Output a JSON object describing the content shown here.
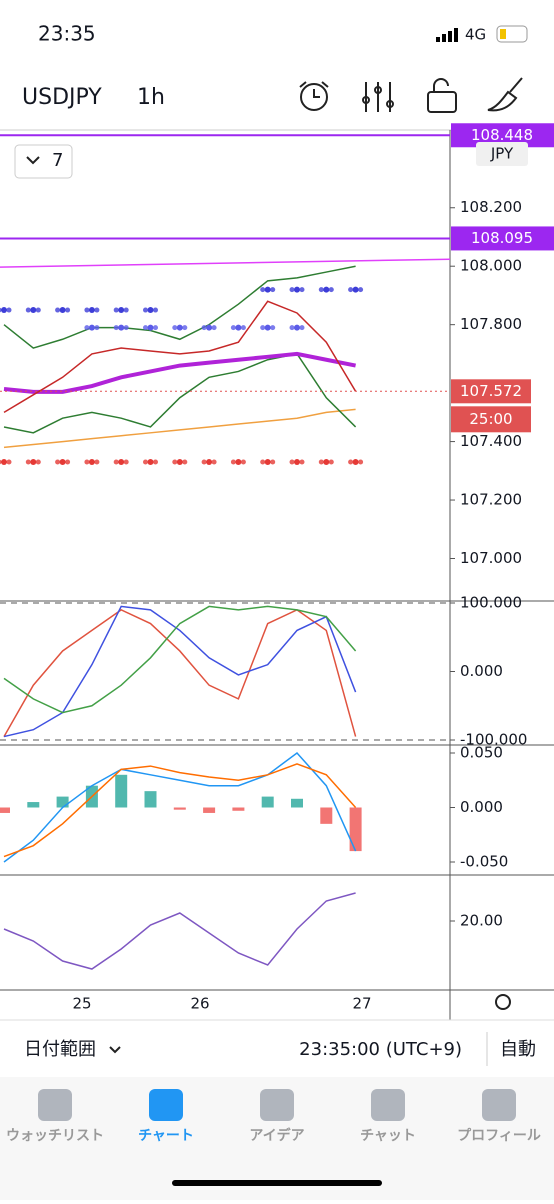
{
  "status_bar": {
    "time": "23:35",
    "network": "4G"
  },
  "header": {
    "symbol": "USDJPY",
    "interval": "1h"
  },
  "indicator_toggle": "7",
  "currency": "JPY",
  "x_axis": {
    "labels": [
      "25",
      "26",
      "27"
    ]
  },
  "chart_data": [
    {
      "type": "line",
      "ylim": [
        106.858,
        108.466
      ],
      "yticks": [
        {
          "value": 108.2,
          "label": "108.200"
        },
        {
          "value": 108,
          "label": "108.000"
        },
        {
          "value": 107.8,
          "label": "107.800"
        },
        {
          "value": 107.4,
          "label": "107.400"
        },
        {
          "value": 107.2,
          "label": "107.200"
        },
        {
          "value": 107,
          "label": "107.000"
        }
      ],
      "price_lines": [
        {
          "value": 108.448,
          "label": "108.448",
          "color": "#9c27f0"
        },
        {
          "value": 108.095,
          "label": "108.095",
          "color": "#9c27f0"
        }
      ],
      "trendline": {
        "values": [
          107.997,
          108.024
        ],
        "color": "#e040fb"
      },
      "last_price": {
        "value": 107.572,
        "label": "107.572",
        "countdown": "25:00",
        "color": "#e05252"
      },
      "series": [
        {
          "kind": "line",
          "color": "#f0a040",
          "values": [
            107.38,
            107.39,
            107.4,
            107.41,
            107.42,
            107.43,
            107.44,
            107.45,
            107.46,
            107.47,
            107.48,
            107.5,
            107.51
          ]
        },
        {
          "kind": "line",
          "color": "#2e7d32",
          "values": [
            107.8,
            107.72,
            107.75,
            107.79,
            107.79,
            107.78,
            107.75,
            107.8,
            107.87,
            107.95,
            107.96,
            107.98,
            108.0
          ]
        },
        {
          "kind": "line",
          "color": "#2e7d32",
          "values": [
            107.45,
            107.43,
            107.48,
            107.5,
            107.48,
            107.45,
            107.55,
            107.62,
            107.64,
            107.68,
            107.7,
            107.55,
            107.45
          ]
        },
        {
          "kind": "line",
          "color": "#b023d8",
          "values": [
            107.58,
            107.57,
            107.57,
            107.59,
            107.62,
            107.64,
            107.66,
            107.67,
            107.68,
            107.69,
            107.7,
            107.68,
            107.66
          ]
        },
        {
          "kind": "line",
          "color": "#c62828",
          "values": [
            107.5,
            107.56,
            107.62,
            107.7,
            107.72,
            107.71,
            107.7,
            107.71,
            107.74,
            107.88,
            107.84,
            107.74,
            107.572
          ]
        },
        {
          "kind": "dots",
          "color": "#3d3dd8",
          "values": [
            107.85,
            107.85,
            107.85,
            107.85,
            107.85,
            107.85,
            null,
            null,
            null,
            null,
            null,
            null,
            null
          ]
        },
        {
          "kind": "dots",
          "color": "#5b5be8",
          "values": [
            null,
            null,
            null,
            107.79,
            107.79,
            107.79,
            107.79,
            107.79,
            107.79,
            107.79,
            107.79,
            null,
            null
          ]
        },
        {
          "kind": "dots",
          "color": "#3d3dd8",
          "values": [
            null,
            null,
            null,
            null,
            null,
            null,
            null,
            null,
            null,
            107.92,
            107.92,
            107.92,
            107.92
          ]
        },
        {
          "kind": "dots",
          "color": "#e53935",
          "values": [
            107.33,
            107.33,
            107.33,
            107.33,
            107.33,
            107.33,
            107.33,
            107.33,
            107.33,
            107.33,
            107.33,
            107.33,
            107.33
          ]
        }
      ]
    },
    {
      "type": "line",
      "ylim": [
        -100,
        100
      ],
      "yticks": [
        {
          "value": 100,
          "label": "100.000"
        },
        {
          "value": 0,
          "label": "0.000"
        },
        {
          "value": -100,
          "label": "-100.000"
        }
      ],
      "series": [
        {
          "kind": "line",
          "color": "#e0533f",
          "values": [
            -95,
            -20,
            30,
            60,
            90,
            70,
            30,
            -20,
            -40,
            70,
            90,
            60,
            -95
          ]
        },
        {
          "kind": "line",
          "color": "#3f51e0",
          "values": [
            -95,
            -85,
            -60,
            10,
            95,
            90,
            60,
            20,
            -5,
            10,
            60,
            80,
            -30
          ]
        },
        {
          "kind": "line",
          "color": "#43a047",
          "values": [
            -10,
            -40,
            -60,
            -50,
            -20,
            20,
            70,
            95,
            90,
            95,
            90,
            80,
            30
          ]
        }
      ]
    },
    {
      "type": "bar",
      "ylim": [
        -0.05,
        0.05
      ],
      "yticks": [
        {
          "value": 0.05,
          "label": "0.050"
        },
        {
          "value": 0,
          "label": "0.000"
        },
        {
          "value": -0.05,
          "label": "-0.050"
        }
      ],
      "histogram": {
        "values": [
          -0.005,
          0.005,
          0.01,
          0.02,
          0.03,
          0.015,
          -0.002,
          -0.005,
          -0.003,
          0.01,
          0.008,
          -0.015,
          -0.04
        ],
        "color_up": "#26a69a",
        "color_down": "#ef5350"
      },
      "series": [
        {
          "kind": "line",
          "color": "#2196f3",
          "values": [
            -0.05,
            -0.03,
            0,
            0.02,
            0.035,
            0.03,
            0.025,
            0.02,
            0.02,
            0.03,
            0.05,
            0.02,
            -0.04
          ]
        },
        {
          "kind": "line",
          "color": "#ff6d00",
          "values": [
            -0.045,
            -0.035,
            -0.015,
            0.01,
            0.035,
            0.038,
            0.032,
            0.028,
            0.025,
            0.03,
            0.04,
            0.03,
            0
          ]
        }
      ]
    },
    {
      "type": "line",
      "ylim": [
        4,
        31
      ],
      "yticks": [
        {
          "value": 20,
          "label": "20.00"
        }
      ],
      "series": [
        {
          "kind": "line",
          "color": "#7e57c2",
          "values": [
            18,
            15,
            10,
            8,
            13,
            19,
            22,
            17,
            12,
            9,
            18,
            25,
            27
          ]
        }
      ]
    }
  ],
  "bottom_bar": {
    "range": "日付範囲",
    "time": "23:35:00 (UTC+9)",
    "mode": "自動"
  },
  "tabs": [
    "ウォッチリスト",
    "チャート",
    "アイデア",
    "チャット",
    "プロフィール"
  ]
}
